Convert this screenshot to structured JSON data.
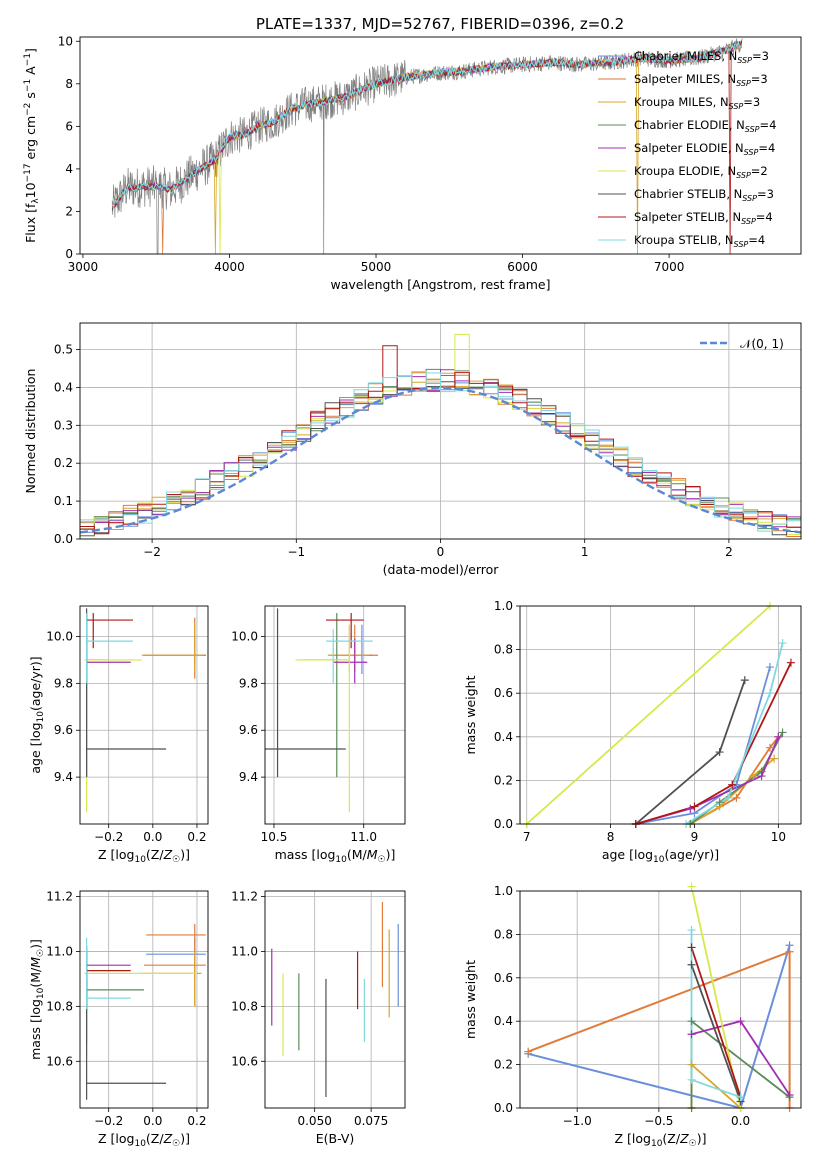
{
  "figure": {
    "title": "PLATE=1337, MJD=52767, FIBERID=0396, z=0.2"
  },
  "models": [
    {
      "name": "Chabrier MILES",
      "nssp": "3",
      "color": "#6b8fdc"
    },
    {
      "name": "Salpeter MILES",
      "nssp": "3",
      "color": "#e07b39"
    },
    {
      "name": "Kroupa MILES",
      "nssp": "3",
      "color": "#d8a62e"
    },
    {
      "name": "Chabrier ELODIE",
      "nssp": "4",
      "color": "#5a8a5a"
    },
    {
      "name": "Salpeter ELODIE",
      "nssp": "4",
      "color": "#a030b0"
    },
    {
      "name": "Kroupa ELODIE",
      "nssp": "2",
      "color": "#d8e84a"
    },
    {
      "name": "Chabrier STELIB",
      "nssp": "3",
      "color": "#505050"
    },
    {
      "name": "Salpeter STELIB",
      "nssp": "4",
      "color": "#b01818"
    },
    {
      "name": "Kroupa STELIB",
      "nssp": "4",
      "color": "#7fd8e0"
    }
  ],
  "chart_data": [
    {
      "id": "spectrum",
      "type": "line",
      "xlabel": "wavelength [Angstrom, rest frame]",
      "ylabel_parts": [
        "Flux [f",
        "λ",
        "10",
        "−17",
        " erg cm",
        "−2",
        " s",
        "−1",
        " A",
        "−1",
        "]"
      ],
      "xlim": [
        2980,
        7900
      ],
      "ylim": [
        0,
        10.2
      ],
      "xticks": [
        3000,
        4000,
        5000,
        6000,
        7000
      ],
      "yticks": [
        0,
        2,
        4,
        6,
        8,
        10
      ],
      "grid": false,
      "legend_loc": "upper-right",
      "legend_suffix": "N",
      "legend_sub": "SSP",
      "continuum": [
        [
          3200,
          2.2
        ],
        [
          3300,
          3.1
        ],
        [
          3500,
          3.2
        ],
        [
          3600,
          3.0
        ],
        [
          3700,
          3.5
        ],
        [
          3800,
          4.0
        ],
        [
          3900,
          4.4
        ],
        [
          4000,
          5.5
        ],
        [
          4100,
          5.6
        ],
        [
          4200,
          6.0
        ],
        [
          4300,
          6.2
        ],
        [
          4400,
          6.7
        ],
        [
          4500,
          7.0
        ],
        [
          4600,
          7.1
        ],
        [
          4800,
          7.4
        ],
        [
          5000,
          8.0
        ],
        [
          5200,
          8.3
        ],
        [
          5400,
          8.5
        ],
        [
          5600,
          8.6
        ],
        [
          5800,
          8.8
        ],
        [
          6000,
          8.9
        ],
        [
          6200,
          9.0
        ],
        [
          6400,
          8.9
        ],
        [
          6600,
          9.0
        ],
        [
          6800,
          9.2
        ],
        [
          7000,
          9.1
        ],
        [
          7200,
          9.2
        ],
        [
          7400,
          9.6
        ],
        [
          7500,
          9.9
        ]
      ]
    },
    {
      "id": "residuals",
      "type": "bar",
      "xlabel": "(data-model)/error",
      "ylabel": "Normed distribution",
      "xlim": [
        -2.5,
        2.5
      ],
      "ylim": [
        0,
        0.57
      ],
      "xticks": [
        -2,
        -1,
        0,
        1,
        2
      ],
      "yticks": [
        0.0,
        0.1,
        0.2,
        0.3,
        0.4,
        0.5
      ],
      "grid": true,
      "bins": 50,
      "legend": "𝒩(0, 1)",
      "legend_loc": "upper-right",
      "gauss_color": "#5b87d4"
    },
    {
      "id": "age-vs-Z",
      "type": "scatter",
      "xlabel": "Z [log10(Z/Z☉)]",
      "ylabel": "age  [log10(age/yr)]",
      "xlim": [
        -0.33,
        0.25
      ],
      "ylim": [
        9.2,
        10.13
      ],
      "xticks": [
        -0.2,
        0.0,
        0.2
      ],
      "yticks": [
        9.4,
        9.6,
        9.8,
        10.0
      ],
      "grid": true,
      "errorbars": [
        {
          "m": 0,
          "x": 0.19,
          "y": 9.92,
          "xe": [
            -0.03,
            0.24
          ],
          "ye": [
            9.88,
            10.0
          ]
        },
        {
          "m": 1,
          "x": 0.19,
          "y": 9.92,
          "xe": [
            -0.04,
            0.24
          ],
          "ye": [
            9.82,
            10.08
          ]
        },
        {
          "m": 2,
          "x": 0.19,
          "y": 9.92,
          "xe": [
            -0.05,
            0.23
          ],
          "ye": [
            9.85,
            10.05
          ]
        },
        {
          "m": 3,
          "x": -0.3,
          "y": 9.9,
          "xe": [
            -0.3,
            -0.2
          ],
          "ye": [
            9.4,
            10.1
          ]
        },
        {
          "m": 4,
          "x": -0.3,
          "y": 9.89,
          "xe": [
            -0.3,
            -0.1
          ],
          "ye": [
            9.8,
            9.99
          ]
        },
        {
          "m": 5,
          "x": -0.3,
          "y": 9.9,
          "xe": [
            -0.31,
            -0.05
          ],
          "ye": [
            9.25,
            10.05
          ]
        },
        {
          "m": 6,
          "x": -0.3,
          "y": 9.52,
          "xe": [
            -0.3,
            0.06
          ],
          "ye": [
            9.4,
            10.12
          ]
        },
        {
          "m": 7,
          "x": -0.27,
          "y": 10.07,
          "xe": [
            -0.3,
            -0.09
          ],
          "ye": [
            9.95,
            10.1
          ]
        },
        {
          "m": 8,
          "x": -0.3,
          "y": 9.98,
          "xe": [
            -0.3,
            -0.09
          ],
          "ye": [
            9.8,
            10.1
          ]
        }
      ]
    },
    {
      "id": "age-vs-mass",
      "type": "scatter",
      "xlabel": "mass [log10(M/M☉)]",
      "ylabel": "",
      "xlim": [
        10.45,
        11.23
      ],
      "ylim": [
        9.2,
        10.13
      ],
      "xticks": [
        10.5,
        11.0
      ],
      "yticks": [
        9.4,
        9.6,
        9.8,
        10.0
      ],
      "grid": true,
      "errorbars": [
        {
          "m": 0,
          "x": 10.99,
          "y": 9.92,
          "xe": [
            10.9,
            11.05
          ],
          "ye": [
            9.84,
            10.05
          ]
        },
        {
          "m": 1,
          "x": 10.95,
          "y": 9.92,
          "xe": [
            10.82,
            11.08
          ],
          "ye": [
            9.85,
            10.05
          ]
        },
        {
          "m": 2,
          "x": 10.92,
          "y": 9.92,
          "xe": [
            10.8,
            11.03
          ],
          "ye": [
            9.85,
            10.05
          ]
        },
        {
          "m": 3,
          "x": 10.85,
          "y": 9.9,
          "xe": [
            10.66,
            10.91
          ],
          "ye": [
            9.4,
            10.1
          ]
        },
        {
          "m": 4,
          "x": 10.95,
          "y": 9.89,
          "xe": [
            10.83,
            11.02
          ],
          "ye": [
            9.8,
            9.99
          ]
        },
        {
          "m": 5,
          "x": 10.92,
          "y": 9.9,
          "xe": [
            10.62,
            10.92
          ],
          "ye": [
            9.25,
            10.05
          ]
        },
        {
          "m": 6,
          "x": 10.52,
          "y": 9.52,
          "xe": [
            10.45,
            10.9
          ],
          "ye": [
            9.4,
            10.12
          ]
        },
        {
          "m": 7,
          "x": 10.93,
          "y": 10.07,
          "xe": [
            10.79,
            11.0
          ],
          "ye": [
            9.95,
            10.1
          ]
        },
        {
          "m": 8,
          "x": 10.83,
          "y": 9.98,
          "xe": [
            10.79,
            11.05
          ],
          "ye": [
            9.8,
            10.03
          ]
        }
      ]
    },
    {
      "id": "massweight-vs-age",
      "type": "line",
      "xlabel": "age  [log10(age/yr)]",
      "ylabel": "mass weight",
      "xlim": [
        6.92,
        10.27
      ],
      "ylim": [
        0,
        1.0
      ],
      "xticks": [
        7,
        8,
        9,
        10
      ],
      "yticks": [
        0.0,
        0.2,
        0.4,
        0.6,
        0.8,
        1.0
      ],
      "grid": true,
      "series": [
        {
          "m": 0,
          "points": [
            [
              8.3,
              0.0
            ],
            [
              9.0,
              0.05
            ],
            [
              9.5,
              0.18
            ],
            [
              9.9,
              0.72
            ]
          ]
        },
        {
          "m": 1,
          "points": [
            [
              8.95,
              0.0
            ],
            [
              9.5,
              0.12
            ],
            [
              9.9,
              0.35
            ],
            [
              10.0,
              0.4
            ]
          ]
        },
        {
          "m": 2,
          "points": [
            [
              8.95,
              0.0
            ],
            [
              9.3,
              0.08
            ],
            [
              9.7,
              0.22
            ],
            [
              9.95,
              0.3
            ]
          ]
        },
        {
          "m": 3,
          "points": [
            [
              8.95,
              0.0
            ],
            [
              9.3,
              0.1
            ],
            [
              9.8,
              0.24
            ],
            [
              10.05,
              0.42
            ]
          ]
        },
        {
          "m": 4,
          "points": [
            [
              8.3,
              0.0
            ],
            [
              8.95,
              0.07
            ],
            [
              9.8,
              0.22
            ],
            [
              10.0,
              0.4
            ]
          ]
        },
        {
          "m": 5,
          "points": [
            [
              7.0,
              0.0
            ],
            [
              9.9,
              1.0
            ]
          ]
        },
        {
          "m": 6,
          "points": [
            [
              8.3,
              0.0
            ],
            [
              9.3,
              0.33
            ],
            [
              9.6,
              0.66
            ]
          ]
        },
        {
          "m": 7,
          "points": [
            [
              8.3,
              0.0
            ],
            [
              9.0,
              0.08
            ],
            [
              9.45,
              0.18
            ],
            [
              10.15,
              0.74
            ]
          ]
        },
        {
          "m": 8,
          "points": [
            [
              8.9,
              0.0
            ],
            [
              9.4,
              0.12
            ],
            [
              9.9,
              0.6
            ],
            [
              10.05,
              0.83
            ]
          ]
        }
      ]
    },
    {
      "id": "mass-vs-Z",
      "type": "scatter",
      "xlabel": "Z [log10(Z/Z☉)]",
      "ylabel": "mass [log10(M/M☉)]",
      "xlim": [
        -0.33,
        0.25
      ],
      "ylim": [
        10.43,
        11.22
      ],
      "xticks": [
        -0.2,
        0.0,
        0.2
      ],
      "yticks": [
        10.6,
        10.8,
        11.0,
        11.2
      ],
      "grid": true,
      "errorbars": [
        {
          "m": 0,
          "x": 0.19,
          "y": 10.99,
          "xe": [
            -0.03,
            0.24
          ],
          "ye": [
            10.9,
            11.05
          ]
        },
        {
          "m": 1,
          "x": 0.19,
          "y": 10.95,
          "xe": [
            -0.04,
            0.24
          ],
          "ye": [
            10.8,
            11.1
          ]
        },
        {
          "m": 2,
          "x": 0.19,
          "y": 10.92,
          "xe": [
            -0.05,
            0.22
          ],
          "ye": [
            10.8,
            11.0
          ]
        },
        {
          "m": 3,
          "x": -0.3,
          "y": 10.86,
          "xe": [
            -0.3,
            -0.04
          ],
          "ye": [
            10.67,
            10.92
          ]
        },
        {
          "m": 4,
          "x": -0.3,
          "y": 10.95,
          "xe": [
            -0.3,
            -0.1
          ],
          "ye": [
            10.83,
            11.02
          ]
        },
        {
          "m": 5,
          "x": -0.3,
          "y": 10.92,
          "xe": [
            -0.31,
            0.2
          ],
          "ye": [
            10.62,
            10.92
          ]
        },
        {
          "m": 6,
          "x": -0.3,
          "y": 10.52,
          "xe": [
            -0.3,
            0.06
          ],
          "ye": [
            10.46,
            10.9
          ]
        },
        {
          "m": 7,
          "x": -0.3,
          "y": 10.93,
          "xe": [
            -0.3,
            -0.1
          ],
          "ye": [
            10.79,
            11.0
          ]
        },
        {
          "m": 8,
          "x": -0.3,
          "y": 10.83,
          "xe": [
            -0.3,
            -0.1
          ],
          "ye": [
            10.79,
            11.05
          ]
        },
        {
          "m": 1,
          "x": 0.05,
          "y": 11.06,
          "xe": [
            -0.03,
            0.24
          ],
          "ye": [
            11.06,
            11.06
          ]
        }
      ]
    },
    {
      "id": "mass-vs-ebv",
      "type": "scatter",
      "xlabel": "E(B-V)",
      "ylabel": "",
      "xlim": [
        0.028,
        0.09
      ],
      "ylim": [
        10.43,
        11.22
      ],
      "xticks": [
        0.05,
        0.075
      ],
      "yticks": [
        10.6,
        10.8,
        11.0,
        11.2
      ],
      "grid": true,
      "errorbars": [
        {
          "m": 4,
          "x": 0.031,
          "y": 10.87,
          "xe": [
            0.031,
            0.031
          ],
          "ye": [
            10.73,
            11.01
          ]
        },
        {
          "m": 5,
          "x": 0.036,
          "y": 10.77,
          "xe": [
            0.036,
            0.036
          ],
          "ye": [
            10.62,
            10.92
          ]
        },
        {
          "m": 3,
          "x": 0.043,
          "y": 10.78,
          "xe": [
            0.043,
            0.043
          ],
          "ye": [
            10.64,
            10.92
          ]
        },
        {
          "m": 6,
          "x": 0.055,
          "y": 10.68,
          "xe": [
            0.055,
            0.055
          ],
          "ye": [
            10.47,
            10.9
          ]
        },
        {
          "m": 7,
          "x": 0.069,
          "y": 10.9,
          "xe": [
            0.069,
            0.069
          ],
          "ye": [
            10.79,
            11.0
          ]
        },
        {
          "m": 8,
          "x": 0.072,
          "y": 10.77,
          "xe": [
            0.072,
            0.072
          ],
          "ye": [
            10.67,
            10.9
          ]
        },
        {
          "m": 1,
          "x": 0.08,
          "y": 11.0,
          "xe": [
            0.08,
            0.08
          ],
          "ye": [
            10.87,
            11.18
          ]
        },
        {
          "m": 2,
          "x": 0.083,
          "y": 10.92,
          "xe": [
            0.083,
            0.083
          ],
          "ye": [
            10.76,
            11.08
          ]
        },
        {
          "m": 0,
          "x": 0.087,
          "y": 10.95,
          "xe": [
            0.087,
            0.087
          ],
          "ye": [
            10.8,
            11.1
          ]
        }
      ]
    },
    {
      "id": "massweight-vs-Z",
      "type": "line",
      "xlabel": "Z [log10(Z/Z☉)]",
      "ylabel": "mass weight",
      "xlim": [
        -1.35,
        0.37
      ],
      "ylim": [
        0,
        1.0
      ],
      "xticks": [
        -1.0,
        -0.5,
        0.0
      ],
      "yticks": [
        0.0,
        0.2,
        0.4,
        0.6,
        0.8,
        1.0
      ],
      "grid": true,
      "series": [
        {
          "m": 0,
          "points": [
            [
              -1.3,
              0.25
            ],
            [
              0.0,
              0.0
            ],
            [
              0.3,
              0.75
            ]
          ],
          "thick": true
        },
        {
          "m": 1,
          "points": [
            [
              0.3,
              0.0
            ],
            [
              0.3,
              0.72
            ],
            [
              -1.3,
              0.26
            ]
          ],
          "thick": true
        },
        {
          "m": 2,
          "points": [
            [
              -0.3,
              0.0
            ],
            [
              -0.3,
              0.2
            ],
            [
              0.0,
              0.0
            ]
          ]
        },
        {
          "m": 3,
          "points": [
            [
              -0.3,
              0.0
            ],
            [
              -0.3,
              0.4
            ],
            [
              0.3,
              0.05
            ]
          ]
        },
        {
          "m": 4,
          "points": [
            [
              -0.3,
              0.34
            ],
            [
              0.0,
              0.4
            ],
            [
              0.3,
              0.06
            ]
          ]
        },
        {
          "m": 5,
          "points": [
            [
              -0.3,
              1.02
            ],
            [
              0.0,
              0.0
            ]
          ]
        },
        {
          "m": 6,
          "points": [
            [
              -0.3,
              0.66
            ],
            [
              0.0,
              0.03
            ]
          ]
        },
        {
          "m": 7,
          "points": [
            [
              -0.3,
              0.74
            ],
            [
              0.0,
              0.05
            ]
          ]
        },
        {
          "m": 8,
          "points": [
            [
              -0.3,
              0.82
            ],
            [
              -0.3,
              0.13
            ],
            [
              0.0,
              0.05
            ]
          ]
        }
      ]
    }
  ]
}
